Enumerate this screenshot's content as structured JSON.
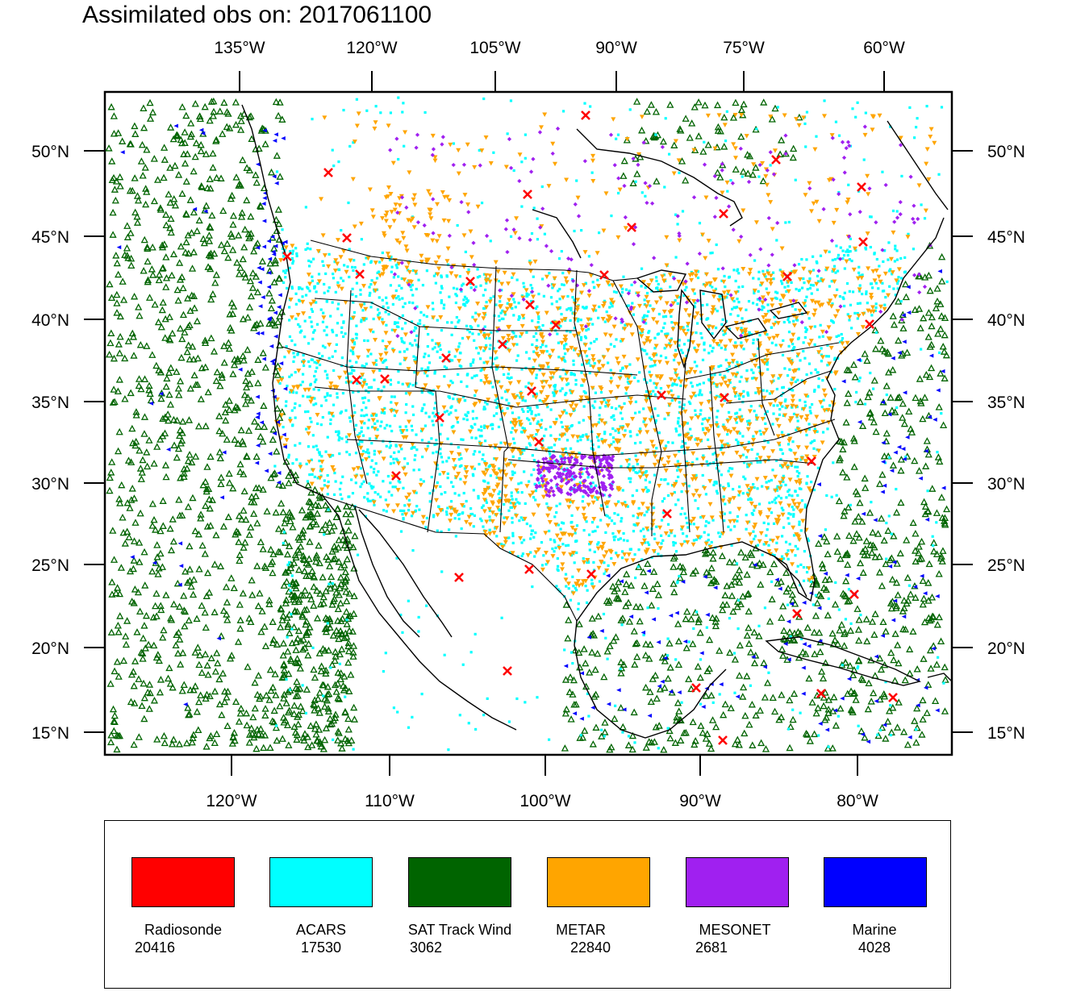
{
  "title": "Assimilated obs on: 2017061100",
  "map": {
    "top_axis_labels": [
      "135°W",
      "120°W",
      "105°W",
      "90°W",
      "75°W",
      "60°W"
    ],
    "bottom_axis_labels": [
      "120°W",
      "110°W",
      "100°W",
      "90°W",
      "80°W"
    ],
    "left_axis_labels": [
      "50°N",
      "45°N",
      "40°N",
      "35°N",
      "30°N",
      "25°N",
      "20°N",
      "15°N"
    ],
    "right_axis_labels": [
      "50°N",
      "45°N",
      "40°N",
      "35°N",
      "30°N",
      "25°N",
      "20°N",
      "15°N"
    ]
  },
  "legend": [
    {
      "name": "Radiosonde",
      "count": "20416",
      "color": "#ff0000",
      "marker": "x-cross"
    },
    {
      "name": "ACARS",
      "count": "17530",
      "color": "#00ffff",
      "marker": "small-square"
    },
    {
      "name": "SAT Track Wind",
      "count": "3062",
      "color": "#006400",
      "marker": "triangle-outline"
    },
    {
      "name": "METAR",
      "count": "22840",
      "color": "#ffa500",
      "marker": "down-triangle"
    },
    {
      "name": "MESONET",
      "count": "2681",
      "color": "#a020f0",
      "marker": "diamond"
    },
    {
      "name": "Marine",
      "count": "4028",
      "color": "#0000ff",
      "marker": "left-triangle"
    }
  ]
}
